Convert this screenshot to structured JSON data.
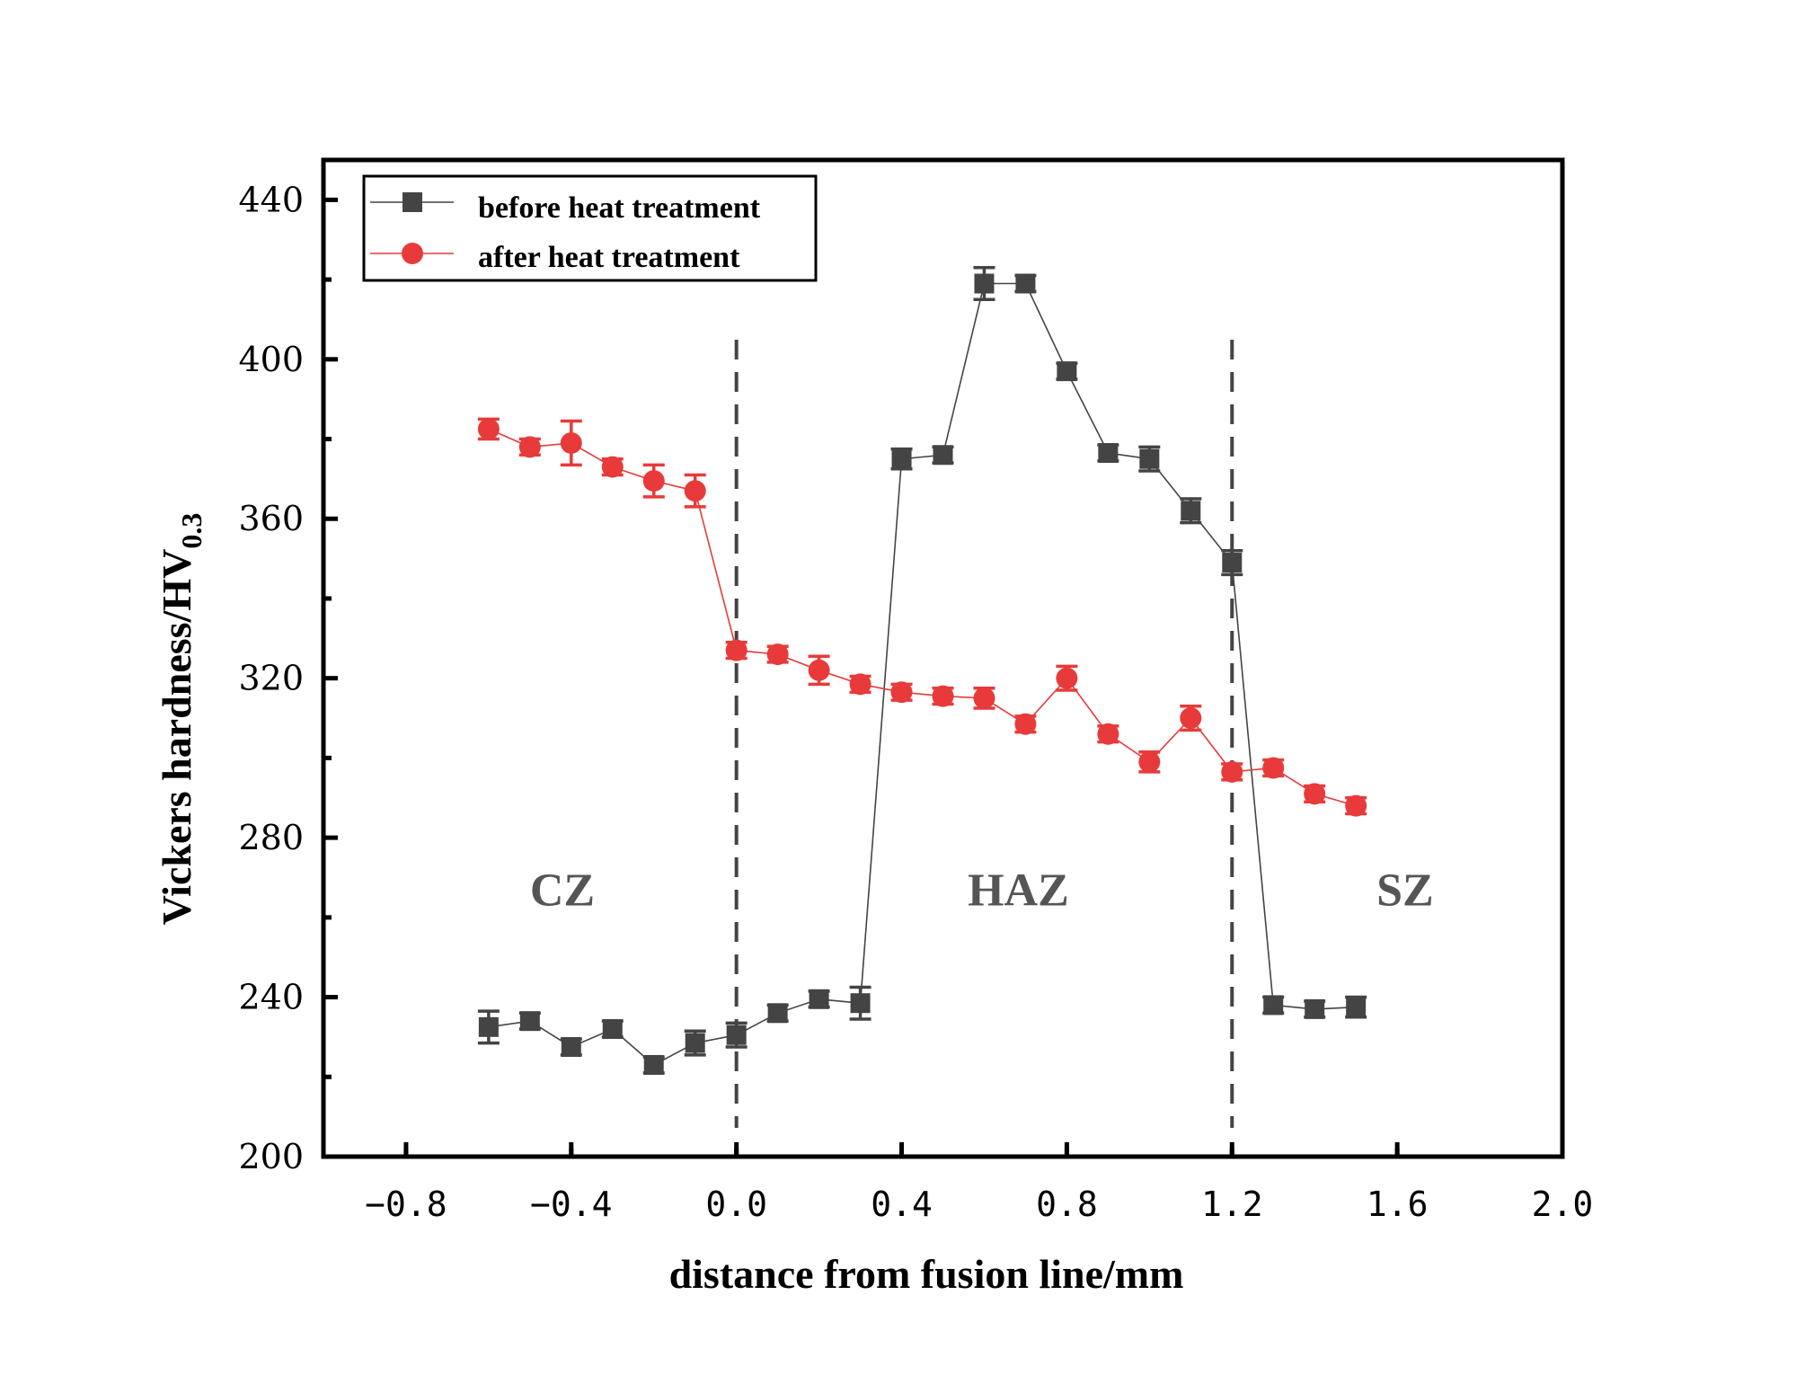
{
  "chart_data": {
    "type": "line",
    "title": "",
    "xlabel": "distance from fusion line/mm",
    "ylabel": {
      "main": "Vickers hardness/HV",
      "subscript": "0.3"
    },
    "xlim": [
      -1.0,
      2.0
    ],
    "ylim": [
      200,
      450
    ],
    "x_ticks": [
      -0.8,
      -0.4,
      0.0,
      0.4,
      0.8,
      1.2,
      1.6,
      2.0
    ],
    "x_tick_labels": [
      "−0.8",
      "−0.4",
      "0.0",
      "0.4",
      "0.8",
      "1.2",
      "1.6",
      "2.0"
    ],
    "y_ticks": [
      200,
      240,
      280,
      320,
      360,
      400,
      440
    ],
    "y_tick_labels": [
      "200",
      "240",
      "280",
      "320",
      "360",
      "400",
      "440"
    ],
    "legend_position": "top-left",
    "vertical_lines": [
      0.0,
      1.2
    ],
    "regions": [
      {
        "label": "CZ",
        "x": -0.5,
        "y": 272
      },
      {
        "label": "HAZ",
        "x": 0.56,
        "y": 272
      },
      {
        "label": "SZ",
        "x": 1.55,
        "y": 272
      }
    ],
    "series": [
      {
        "name": "before heat treatment",
        "color": "#444444",
        "marker": "square",
        "x": [
          -0.6,
          -0.5,
          -0.4,
          -0.3,
          -0.2,
          -0.1,
          0.0,
          0.1,
          0.2,
          0.3,
          0.4,
          0.5,
          0.6,
          0.7,
          0.8,
          0.9,
          1.0,
          1.1,
          1.2,
          1.3,
          1.4,
          1.5
        ],
        "y": [
          232.5,
          234,
          227.5,
          232,
          223,
          228.5,
          230.5,
          236,
          239.5,
          238.5,
          375,
          376,
          419,
          419,
          397,
          376.5,
          375,
          362,
          349,
          238,
          237,
          237.5
        ],
        "err": [
          4,
          2,
          2,
          2,
          2,
          3,
          3,
          2,
          2,
          4,
          2.5,
          2,
          4,
          2,
          2,
          2,
          3,
          3,
          3,
          2,
          2,
          2.5
        ]
      },
      {
        "name": "after heat treatment",
        "color": "#e83a3a",
        "marker": "circle",
        "x": [
          -0.6,
          -0.5,
          -0.4,
          -0.3,
          -0.2,
          -0.1,
          0.0,
          0.1,
          0.2,
          0.3,
          0.4,
          0.5,
          0.6,
          0.7,
          0.8,
          0.9,
          1.0,
          1.1,
          1.2,
          1.3,
          1.4,
          1.5
        ],
        "y": [
          382.5,
          378,
          379,
          373,
          369.5,
          367,
          327,
          326,
          322,
          318.5,
          316.5,
          315.5,
          315,
          308.5,
          320,
          306,
          299,
          310,
          296.5,
          297.5,
          291,
          288
        ],
        "err": [
          2.5,
          2,
          5.5,
          2,
          4,
          4,
          2,
          2,
          3.5,
          2,
          2,
          2,
          2.5,
          2,
          3,
          2,
          2.5,
          3,
          2,
          2,
          2,
          2
        ]
      }
    ]
  }
}
